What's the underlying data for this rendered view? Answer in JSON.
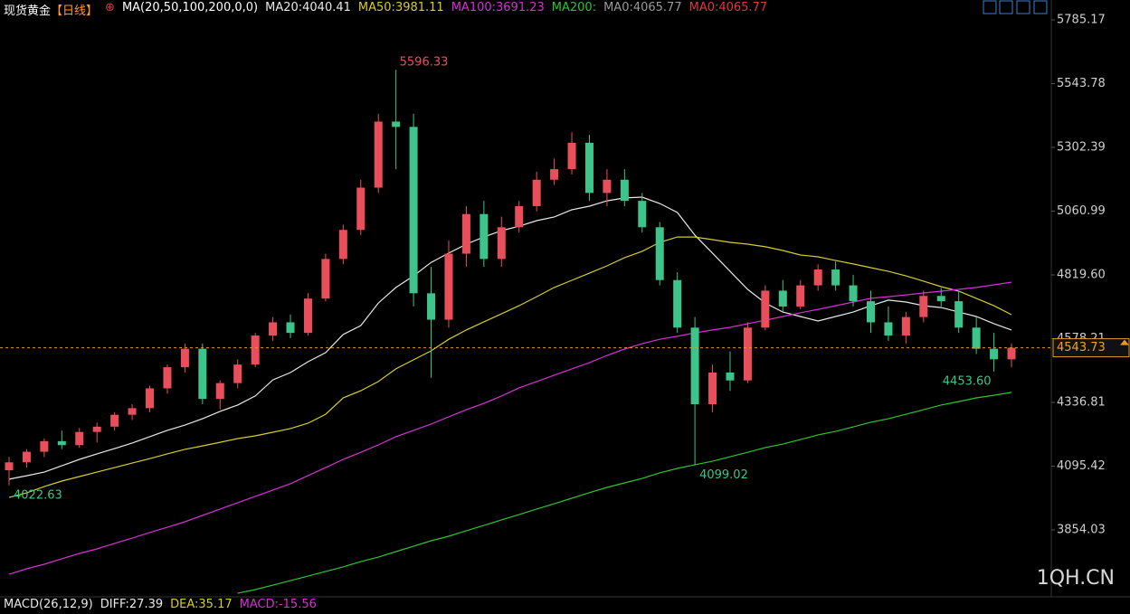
{
  "chart_data": {
    "type": "candlestick",
    "title": "现货黄金",
    "period": "【日线】",
    "indicator": "MA(20,50,100,200,0,0)",
    "up_color": "#e94f5a",
    "down_color": "#3cc48b",
    "ylim": [
      3600.7,
      5860.5
    ],
    "yticks": [
      3854.03,
      4095.42,
      4336.81,
      4578.21,
      {
        "value": 4819.6,
        "label": "4819.60"
      },
      5060.99,
      5302.39,
      5543.78,
      5785.17
    ],
    "open": [
      4080,
      4110,
      4150,
      4190,
      4175,
      4225,
      4245,
      4290,
      4315,
      4390,
      4470,
      4540,
      4350,
      4410,
      4480,
      4590,
      4640,
      4600,
      4730,
      4880,
      4990,
      5150,
      5400,
      5380,
      4750,
      4650,
      4900,
      5050,
      4880,
      5000,
      5080,
      5180,
      5220,
      5320,
      5130,
      5180,
      5100,
      5000,
      4800,
      4620,
      4330,
      4450,
      4420,
      4620,
      4760,
      4700,
      4780,
      4840,
      4780,
      4720,
      4640,
      4590,
      4660,
      4740,
      4720,
      4620,
      4540,
      4500
    ],
    "high": [
      4130,
      4160,
      4200,
      4230,
      4240,
      4260,
      4300,
      4330,
      4400,
      4480,
      4560,
      4560,
      4420,
      4500,
      4600,
      4660,
      4670,
      4750,
      4900,
      5010,
      5180,
      5430,
      5596.33,
      5430,
      4850,
      4950,
      5080,
      5100,
      5040,
      5100,
      5210,
      5260,
      5360,
      5350,
      5220,
      5220,
      5130,
      5020,
      4830,
      4660,
      4480,
      4530,
      4640,
      4780,
      4800,
      4800,
      4860,
      4870,
      4820,
      4760,
      4700,
      4680,
      4760,
      4770,
      4760,
      4660,
      4600,
      4560
    ],
    "low": [
      4022.63,
      4090,
      4130,
      4160,
      4165,
      4185,
      4230,
      4270,
      4300,
      4370,
      4450,
      4330,
      4310,
      4390,
      4470,
      4570,
      4580,
      4590,
      4720,
      4860,
      4970,
      5130,
      5220,
      4700,
      4430,
      4620,
      4850,
      4850,
      4850,
      4980,
      5060,
      5160,
      5200,
      5100,
      5080,
      5080,
      4980,
      4780,
      4600,
      4099.02,
      4300,
      4380,
      4410,
      4610,
      4680,
      4690,
      4760,
      4760,
      4700,
      4600,
      4570,
      4560,
      4640,
      4700,
      4600,
      4520,
      4453.6,
      4470
    ],
    "close": [
      4110,
      4150,
      4190,
      4175,
      4225,
      4245,
      4290,
      4315,
      4390,
      4470,
      4540,
      4350,
      4410,
      4480,
      4590,
      4640,
      4600,
      4730,
      4880,
      4990,
      5150,
      5400,
      5380,
      4750,
      4650,
      4900,
      5050,
      4880,
      5000,
      5080,
      5180,
      5220,
      5320,
      5130,
      5180,
      5100,
      5000,
      4800,
      4620,
      4330,
      4450,
      4420,
      4620,
      4760,
      4700,
      4780,
      4840,
      4780,
      4720,
      4640,
      4590,
      4660,
      4740,
      4720,
      4620,
      4540,
      4500,
      4543.73
    ],
    "high_labels": [
      null,
      null,
      null,
      null,
      null,
      null,
      null,
      null,
      null,
      null,
      null,
      null,
      null,
      null,
      null,
      null,
      null,
      null,
      null,
      null,
      null,
      null,
      "5596.33",
      null,
      null,
      null,
      null,
      null,
      null,
      null,
      null,
      null,
      null,
      null,
      null,
      null,
      null,
      null,
      null,
      null,
      null,
      null,
      null,
      null,
      null,
      null,
      null,
      null,
      null,
      null,
      null,
      null,
      null,
      null,
      null,
      null,
      null,
      null
    ],
    "low_labels": [
      "4022.63",
      null,
      null,
      null,
      null,
      null,
      null,
      null,
      null,
      null,
      null,
      null,
      null,
      null,
      null,
      null,
      null,
      null,
      null,
      null,
      null,
      null,
      null,
      null,
      null,
      null,
      null,
      null,
      null,
      null,
      null,
      null,
      null,
      null,
      null,
      null,
      null,
      null,
      null,
      "4099.02",
      null,
      null,
      null,
      null,
      null,
      null,
      null,
      null,
      null,
      null,
      null,
      null,
      null,
      null,
      null,
      null,
      "4453.60",
      null
    ],
    "series": [
      {
        "name": "MA20:4040.41",
        "color": "#e8e8e8",
        "values": [
          4046,
          4059,
          4073,
          4097,
          4121,
          4142,
          4162,
          4183,
          4207,
          4231,
          4251,
          4275,
          4303,
          4327,
          4361,
          4422,
          4450,
          4491,
          4525,
          4594,
          4628,
          4713,
          4772,
          4816,
          4867,
          4902,
          4936,
          4963,
          4987,
          5004,
          5025,
          5039,
          5066,
          5080,
          5100,
          5111,
          5114,
          5090,
          5056,
          4970,
          4902,
          4833,
          4765,
          4713,
          4679,
          4662,
          4645,
          4662,
          4679,
          4703,
          4724,
          4717,
          4703,
          4696,
          4679,
          4662,
          4635,
          4611
        ]
      },
      {
        "name": "MA50:3981.11",
        "color": "#d6cc2a",
        "values": [
          3977,
          3994,
          4018,
          4039,
          4056,
          4073,
          4090,
          4107,
          4124,
          4142,
          4159,
          4172,
          4186,
          4200,
          4210,
          4224,
          4238,
          4258,
          4292,
          4354,
          4381,
          4416,
          4464,
          4498,
          4532,
          4576,
          4611,
          4642,
          4672,
          4703,
          4737,
          4772,
          4799,
          4826,
          4854,
          4885,
          4909,
          4943,
          4963,
          4963,
          4953,
          4943,
          4936,
          4926,
          4912,
          4895,
          4888,
          4874,
          4861,
          4847,
          4833,
          4816,
          4796,
          4775,
          4758,
          4731,
          4703,
          4669
        ]
      },
      {
        "name": "MA100:3691.23",
        "color": "#d62fd6",
        "values": [
          3686,
          3707,
          3724,
          3745,
          3765,
          3782,
          3803,
          3823,
          3844,
          3864,
          3885,
          3909,
          3933,
          3957,
          3981,
          4005,
          4029,
          4060,
          4090,
          4121,
          4148,
          4176,
          4207,
          4231,
          4255,
          4282,
          4309,
          4333,
          4361,
          4392,
          4416,
          4440,
          4464,
          4487,
          4515,
          4539,
          4559,
          4576,
          4587,
          4600,
          4611,
          4621,
          4635,
          4648,
          4662,
          4676,
          4689,
          4703,
          4717,
          4731,
          4737,
          4744,
          4751,
          4758,
          4765,
          4772,
          4782,
          4792
        ]
      },
      {
        "name": "MA200:",
        "color": "#2fc42f",
        "values": [
          null,
          null,
          null,
          null,
          null,
          null,
          null,
          null,
          null,
          null,
          null,
          null,
          null,
          3614,
          3628,
          3645,
          3662,
          3679,
          3697,
          3714,
          3734,
          3751,
          3772,
          3792,
          3813,
          3830,
          3851,
          3871,
          3892,
          3912,
          3933,
          3953,
          3974,
          3995,
          4015,
          4032,
          4049,
          4070,
          4087,
          4101,
          4114,
          4131,
          4148,
          4166,
          4179,
          4196,
          4214,
          4227,
          4244,
          4262,
          4275,
          4292,
          4309,
          4327,
          4340,
          4354,
          4364,
          4375
        ]
      }
    ],
    "legend_extra": [
      {
        "name": "MA0:4065.77",
        "color": "#9a9a9a"
      },
      {
        "name": "MA0:4065.77",
        "color": "#e0353f"
      }
    ],
    "macd": [
      {
        "name": "MACD(26,12,9)",
        "color": "#e8e8e8"
      },
      {
        "name": "DIFF:27.39",
        "color": "#e8e8e8"
      },
      {
        "name": "DEA:35.17",
        "color": "#d6cc2a"
      },
      {
        "name": "MACD:-15.56",
        "color": "#d62fd6"
      }
    ],
    "watermark": "1QH.CN"
  }
}
